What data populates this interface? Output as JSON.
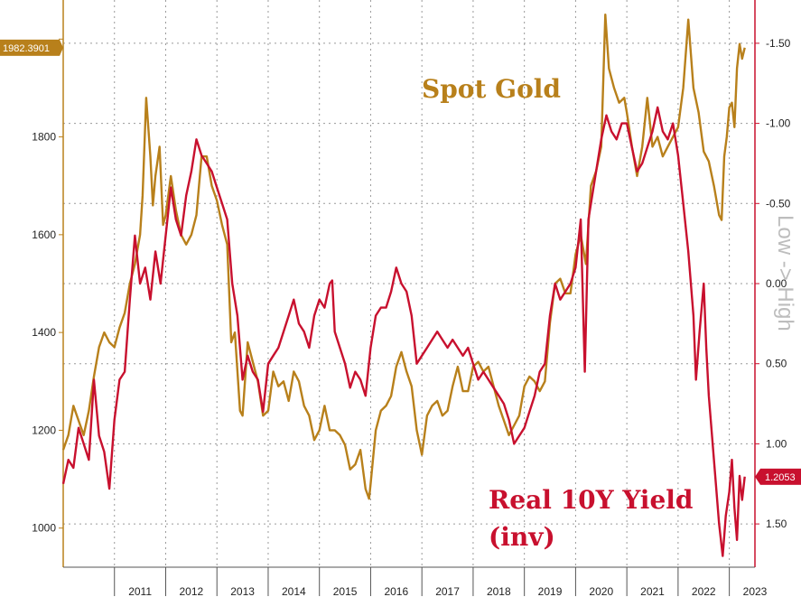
{
  "chart_data": {
    "type": "line",
    "left_axis": {
      "ticks": [
        1000,
        1200,
        1400,
        1600,
        1800,
        2000
      ],
      "tick_labels": [
        "1000",
        "1200",
        "1400",
        "1600",
        "1800",
        ""
      ],
      "range": [
        920,
        2080
      ]
    },
    "right_axis": {
      "title": "Low -> High",
      "inverted": true,
      "ticks": [
        -1.5,
        -1.0,
        -0.5,
        0.0,
        0.5,
        1.0,
        1.5
      ],
      "tick_labels": [
        "-1.50",
        "-1.00",
        "-0.50",
        "0.00",
        "0.50",
        "1.00",
        "1.50"
      ],
      "range": [
        -1.77,
        1.77
      ]
    },
    "x_axis": {
      "labels": [
        "2011",
        "2012",
        "2013",
        "2014",
        "2015",
        "2016",
        "2017",
        "2018",
        "2019",
        "2020",
        "2021",
        "2022",
        "2023"
      ],
      "range": [
        2010.0,
        2023.5
      ]
    },
    "grid": true,
    "series": [
      {
        "name": "Spot Gold",
        "axis": "left",
        "color": "#b8801b",
        "label_position": "top-right",
        "last_value_label": "1982.3901",
        "points": [
          [
            2010.0,
            1160
          ],
          [
            2010.1,
            1190
          ],
          [
            2010.2,
            1250
          ],
          [
            2010.3,
            1220
          ],
          [
            2010.4,
            1190
          ],
          [
            2010.5,
            1240
          ],
          [
            2010.6,
            1310
          ],
          [
            2010.7,
            1370
          ],
          [
            2010.8,
            1400
          ],
          [
            2010.9,
            1380
          ],
          [
            2011.0,
            1370
          ],
          [
            2011.1,
            1410
          ],
          [
            2011.2,
            1440
          ],
          [
            2011.3,
            1500
          ],
          [
            2011.4,
            1540
          ],
          [
            2011.5,
            1600
          ],
          [
            2011.55,
            1680
          ],
          [
            2011.62,
            1880
          ],
          [
            2011.7,
            1760
          ],
          [
            2011.75,
            1660
          ],
          [
            2011.8,
            1720
          ],
          [
            2011.88,
            1780
          ],
          [
            2011.95,
            1620
          ],
          [
            2012.0,
            1640
          ],
          [
            2012.1,
            1720
          ],
          [
            2012.2,
            1650
          ],
          [
            2012.3,
            1600
          ],
          [
            2012.4,
            1580
          ],
          [
            2012.5,
            1600
          ],
          [
            2012.6,
            1640
          ],
          [
            2012.7,
            1760
          ],
          [
            2012.8,
            1760
          ],
          [
            2012.9,
            1700
          ],
          [
            2013.0,
            1670
          ],
          [
            2013.1,
            1620
          ],
          [
            2013.2,
            1580
          ],
          [
            2013.28,
            1380
          ],
          [
            2013.35,
            1400
          ],
          [
            2013.45,
            1240
          ],
          [
            2013.5,
            1230
          ],
          [
            2013.6,
            1380
          ],
          [
            2013.7,
            1340
          ],
          [
            2013.8,
            1300
          ],
          [
            2013.9,
            1230
          ],
          [
            2014.0,
            1240
          ],
          [
            2014.1,
            1320
          ],
          [
            2014.2,
            1290
          ],
          [
            2014.3,
            1300
          ],
          [
            2014.4,
            1260
          ],
          [
            2014.5,
            1320
          ],
          [
            2014.6,
            1300
          ],
          [
            2014.7,
            1250
          ],
          [
            2014.8,
            1230
          ],
          [
            2014.9,
            1180
          ],
          [
            2015.0,
            1200
          ],
          [
            2015.1,
            1250
          ],
          [
            2015.2,
            1200
          ],
          [
            2015.3,
            1200
          ],
          [
            2015.4,
            1190
          ],
          [
            2015.5,
            1170
          ],
          [
            2015.6,
            1120
          ],
          [
            2015.7,
            1130
          ],
          [
            2015.8,
            1160
          ],
          [
            2015.9,
            1080
          ],
          [
            2015.97,
            1060
          ],
          [
            2016.0,
            1090
          ],
          [
            2016.1,
            1200
          ],
          [
            2016.2,
            1240
          ],
          [
            2016.3,
            1250
          ],
          [
            2016.4,
            1270
          ],
          [
            2016.5,
            1330
          ],
          [
            2016.6,
            1360
          ],
          [
            2016.7,
            1320
          ],
          [
            2016.8,
            1290
          ],
          [
            2016.9,
            1200
          ],
          [
            2017.0,
            1150
          ],
          [
            2017.1,
            1230
          ],
          [
            2017.2,
            1250
          ],
          [
            2017.3,
            1260
          ],
          [
            2017.4,
            1230
          ],
          [
            2017.5,
            1240
          ],
          [
            2017.6,
            1290
          ],
          [
            2017.7,
            1330
          ],
          [
            2017.8,
            1280
          ],
          [
            2017.9,
            1280
          ],
          [
            2018.0,
            1330
          ],
          [
            2018.1,
            1340
          ],
          [
            2018.2,
            1320
          ],
          [
            2018.3,
            1330
          ],
          [
            2018.4,
            1290
          ],
          [
            2018.5,
            1250
          ],
          [
            2018.6,
            1220
          ],
          [
            2018.7,
            1190
          ],
          [
            2018.8,
            1210
          ],
          [
            2018.9,
            1230
          ],
          [
            2019.0,
            1290
          ],
          [
            2019.1,
            1310
          ],
          [
            2019.2,
            1300
          ],
          [
            2019.3,
            1280
          ],
          [
            2019.4,
            1300
          ],
          [
            2019.5,
            1420
          ],
          [
            2019.6,
            1500
          ],
          [
            2019.7,
            1510
          ],
          [
            2019.8,
            1480
          ],
          [
            2019.9,
            1480
          ],
          [
            2020.0,
            1560
          ],
          [
            2020.1,
            1600
          ],
          [
            2020.2,
            1540
          ],
          [
            2020.3,
            1700
          ],
          [
            2020.4,
            1730
          ],
          [
            2020.5,
            1780
          ],
          [
            2020.58,
            2050
          ],
          [
            2020.65,
            1940
          ],
          [
            2020.75,
            1900
          ],
          [
            2020.85,
            1870
          ],
          [
            2020.95,
            1880
          ],
          [
            2021.0,
            1850
          ],
          [
            2021.1,
            1780
          ],
          [
            2021.2,
            1720
          ],
          [
            2021.3,
            1780
          ],
          [
            2021.4,
            1880
          ],
          [
            2021.5,
            1780
          ],
          [
            2021.6,
            1800
          ],
          [
            2021.7,
            1760
          ],
          [
            2021.8,
            1780
          ],
          [
            2021.9,
            1800
          ],
          [
            2022.0,
            1820
          ],
          [
            2022.1,
            1900
          ],
          [
            2022.2,
            2040
          ],
          [
            2022.3,
            1900
          ],
          [
            2022.4,
            1850
          ],
          [
            2022.5,
            1770
          ],
          [
            2022.6,
            1750
          ],
          [
            2022.7,
            1700
          ],
          [
            2022.8,
            1640
          ],
          [
            2022.85,
            1630
          ],
          [
            2022.9,
            1760
          ],
          [
            2022.95,
            1800
          ],
          [
            2023.0,
            1860
          ],
          [
            2023.05,
            1870
          ],
          [
            2023.1,
            1820
          ],
          [
            2023.15,
            1940
          ],
          [
            2023.2,
            1990
          ],
          [
            2023.25,
            1960
          ],
          [
            2023.3,
            1982.3901
          ]
        ]
      },
      {
        "name": "Real 10Y Yield (inv)",
        "axis": "right",
        "color": "#c8102e",
        "label_position": "bottom-right",
        "last_value_label": "1.2053",
        "points": [
          [
            2010.0,
            1.25
          ],
          [
            2010.1,
            1.1
          ],
          [
            2010.2,
            1.15
          ],
          [
            2010.3,
            0.9
          ],
          [
            2010.4,
            1.0
          ],
          [
            2010.5,
            1.1
          ],
          [
            2010.6,
            0.6
          ],
          [
            2010.7,
            0.95
          ],
          [
            2010.8,
            1.05
          ],
          [
            2010.9,
            1.28
          ],
          [
            2011.0,
            0.85
          ],
          [
            2011.1,
            0.6
          ],
          [
            2011.2,
            0.55
          ],
          [
            2011.3,
            0.1
          ],
          [
            2011.4,
            -0.3
          ],
          [
            2011.5,
            0.0
          ],
          [
            2011.6,
            -0.1
          ],
          [
            2011.7,
            0.1
          ],
          [
            2011.8,
            -0.2
          ],
          [
            2011.9,
            0.0
          ],
          [
            2012.0,
            -0.3
          ],
          [
            2012.1,
            -0.6
          ],
          [
            2012.2,
            -0.4
          ],
          [
            2012.3,
            -0.3
          ],
          [
            2012.4,
            -0.55
          ],
          [
            2012.5,
            -0.7
          ],
          [
            2012.6,
            -0.9
          ],
          [
            2012.7,
            -0.8
          ],
          [
            2012.8,
            -0.75
          ],
          [
            2012.9,
            -0.7
          ],
          [
            2013.0,
            -0.6
          ],
          [
            2013.1,
            -0.5
          ],
          [
            2013.2,
            -0.4
          ],
          [
            2013.3,
            0.0
          ],
          [
            2013.4,
            0.2
          ],
          [
            2013.5,
            0.6
          ],
          [
            2013.6,
            0.45
          ],
          [
            2013.7,
            0.55
          ],
          [
            2013.8,
            0.6
          ],
          [
            2013.9,
            0.8
          ],
          [
            2014.0,
            0.5
          ],
          [
            2014.1,
            0.45
          ],
          [
            2014.2,
            0.4
          ],
          [
            2014.3,
            0.3
          ],
          [
            2014.4,
            0.2
          ],
          [
            2014.5,
            0.1
          ],
          [
            2014.6,
            0.25
          ],
          [
            2014.7,
            0.3
          ],
          [
            2014.8,
            0.4
          ],
          [
            2014.9,
            0.2
          ],
          [
            2015.0,
            0.1
          ],
          [
            2015.1,
            0.15
          ],
          [
            2015.2,
            0.0
          ],
          [
            2015.25,
            -0.02
          ],
          [
            2015.3,
            0.3
          ],
          [
            2015.4,
            0.4
          ],
          [
            2015.5,
            0.5
          ],
          [
            2015.6,
            0.65
          ],
          [
            2015.7,
            0.55
          ],
          [
            2015.8,
            0.6
          ],
          [
            2015.9,
            0.7
          ],
          [
            2016.0,
            0.4
          ],
          [
            2016.1,
            0.2
          ],
          [
            2016.2,
            0.15
          ],
          [
            2016.3,
            0.15
          ],
          [
            2016.4,
            0.05
          ],
          [
            2016.5,
            -0.1
          ],
          [
            2016.6,
            0.0
          ],
          [
            2016.7,
            0.05
          ],
          [
            2016.8,
            0.2
          ],
          [
            2016.9,
            0.5
          ],
          [
            2017.0,
            0.45
          ],
          [
            2017.1,
            0.4
          ],
          [
            2017.2,
            0.35
          ],
          [
            2017.3,
            0.3
          ],
          [
            2017.4,
            0.35
          ],
          [
            2017.5,
            0.4
          ],
          [
            2017.6,
            0.35
          ],
          [
            2017.7,
            0.4
          ],
          [
            2017.8,
            0.45
          ],
          [
            2017.9,
            0.4
          ],
          [
            2018.0,
            0.5
          ],
          [
            2018.1,
            0.6
          ],
          [
            2018.2,
            0.55
          ],
          [
            2018.3,
            0.6
          ],
          [
            2018.4,
            0.65
          ],
          [
            2018.5,
            0.7
          ],
          [
            2018.6,
            0.75
          ],
          [
            2018.7,
            0.85
          ],
          [
            2018.8,
            1.0
          ],
          [
            2018.9,
            0.95
          ],
          [
            2019.0,
            0.9
          ],
          [
            2019.1,
            0.8
          ],
          [
            2019.2,
            0.7
          ],
          [
            2019.3,
            0.55
          ],
          [
            2019.4,
            0.5
          ],
          [
            2019.5,
            0.2
          ],
          [
            2019.6,
            0.0
          ],
          [
            2019.7,
            0.1
          ],
          [
            2019.8,
            0.05
          ],
          [
            2019.9,
            0.0
          ],
          [
            2020.0,
            -0.1
          ],
          [
            2020.1,
            -0.4
          ],
          [
            2020.18,
            0.55
          ],
          [
            2020.25,
            -0.4
          ],
          [
            2020.3,
            -0.5
          ],
          [
            2020.4,
            -0.7
          ],
          [
            2020.5,
            -0.9
          ],
          [
            2020.6,
            -1.05
          ],
          [
            2020.7,
            -0.95
          ],
          [
            2020.8,
            -0.9
          ],
          [
            2020.9,
            -1.0
          ],
          [
            2021.0,
            -1.0
          ],
          [
            2021.1,
            -0.85
          ],
          [
            2021.2,
            -0.7
          ],
          [
            2021.3,
            -0.75
          ],
          [
            2021.4,
            -0.85
          ],
          [
            2021.5,
            -0.95
          ],
          [
            2021.6,
            -1.1
          ],
          [
            2021.7,
            -0.95
          ],
          [
            2021.8,
            -0.9
          ],
          [
            2021.9,
            -1.0
          ],
          [
            2022.0,
            -0.8
          ],
          [
            2022.1,
            -0.5
          ],
          [
            2022.2,
            -0.2
          ],
          [
            2022.3,
            0.2
          ],
          [
            2022.35,
            0.6
          ],
          [
            2022.42,
            0.3
          ],
          [
            2022.5,
            0.0
          ],
          [
            2022.55,
            0.4
          ],
          [
            2022.6,
            0.7
          ],
          [
            2022.7,
            1.1
          ],
          [
            2022.8,
            1.5
          ],
          [
            2022.87,
            1.7
          ],
          [
            2022.93,
            1.45
          ],
          [
            2023.0,
            1.3
          ],
          [
            2023.05,
            1.1
          ],
          [
            2023.1,
            1.4
          ],
          [
            2023.15,
            1.6
          ],
          [
            2023.2,
            1.2
          ],
          [
            2023.25,
            1.35
          ],
          [
            2023.3,
            1.2053
          ]
        ]
      }
    ],
    "annotations": [
      {
        "text": "Spot Gold",
        "series": "Spot Gold"
      },
      {
        "text": "Real 10Y Yield",
        "series": "Real 10Y Yield (inv)"
      },
      {
        "text": "(inv)",
        "series": "Real 10Y Yield (inv)"
      }
    ]
  }
}
